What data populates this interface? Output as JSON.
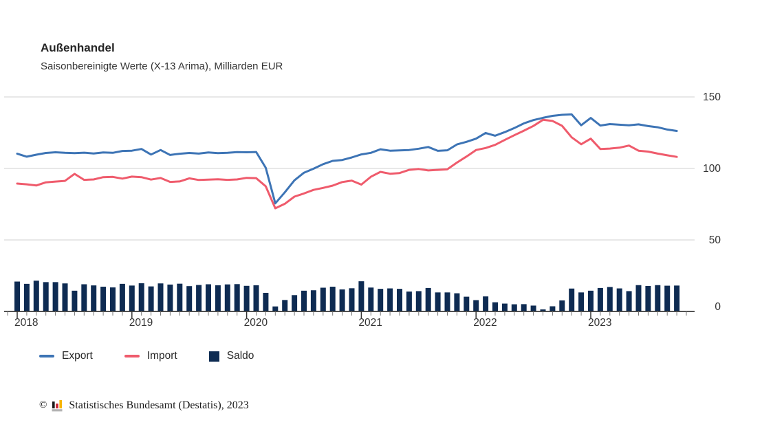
{
  "title": "Außenhandel",
  "subtitle": "Saisonbereinigte Werte (X-13 Arima), Milliarden EUR",
  "legend": [
    {
      "label": "Export",
      "swatch": "line",
      "color": "#3d74b5"
    },
    {
      "label": "Import",
      "swatch": "line",
      "color": "#ef5b6c"
    },
    {
      "label": "Saldo",
      "swatch": "square",
      "color": "#0e2b52"
    }
  ],
  "footer": {
    "copyright": "©",
    "source": "Statistisches Bundesamt (Destatis), 2023",
    "logo_colors": {
      "bar1": "#1a1a1a",
      "bar2": "#cc2330",
      "bar3": "#f7b500",
      "base": "#b3b3b3"
    }
  },
  "colors": {
    "export_line": "#3d74b5",
    "import_line": "#ef5b6c",
    "saldo_bar": "#0e2b52",
    "gridline": "#d2d2d2",
    "axis": "#3a3a3a",
    "tick_minor": "#777777",
    "tick_major": "#333333",
    "label_text": "#333333"
  },
  "chart_data": {
    "type": "line+bar",
    "title": "Außenhandel",
    "subtitle": "Saisonbereinigte Werte (X-13 Arima), Milliarden EUR",
    "unit": "Milliarden EUR",
    "x_unit": "month",
    "x_start": "2018-01",
    "x_end": "2023-10",
    "year_labels": [
      "2018",
      "2019",
      "2020",
      "2021",
      "2022",
      "2023"
    ],
    "year_start_indices": [
      0,
      12,
      24,
      36,
      48,
      60
    ],
    "y_ticks": [
      0,
      50,
      100,
      150
    ],
    "ylim": [
      0,
      150
    ],
    "yaxis_side": "right",
    "grid": "horizontal",
    "legend_position": "bottom-left",
    "series": [
      {
        "name": "Export",
        "type": "line",
        "color": "#3d74b5",
        "values": [
          110.3,
          108.2,
          109.6,
          110.8,
          111.3,
          110.9,
          110.7,
          111.0,
          110.5,
          111.2,
          110.9,
          112.2,
          112.4,
          113.6,
          109.7,
          112.9,
          109.4,
          110.3,
          110.8,
          110.4,
          111.2,
          110.7,
          110.9,
          111.4,
          111.3,
          111.5,
          100.5,
          75.6,
          83.3,
          91.7,
          97.0,
          99.8,
          103.0,
          105.3,
          105.9,
          107.7,
          109.8,
          110.9,
          113.4,
          112.4,
          112.6,
          112.9,
          113.8,
          115.0,
          112.3,
          112.7,
          116.8,
          118.6,
          120.8,
          124.8,
          122.9,
          125.4,
          128.2,
          131.5,
          133.8,
          135.4,
          136.8,
          137.5,
          137.8,
          130.2,
          135.3,
          130.0,
          131.0,
          130.6,
          130.2,
          130.8,
          129.6,
          128.8,
          127.2,
          126.2
        ]
      },
      {
        "name": "Import",
        "type": "line",
        "color": "#ef5b6c",
        "values": [
          89.4,
          88.9,
          88.1,
          90.3,
          90.8,
          91.3,
          96.2,
          92.0,
          92.3,
          93.9,
          94.1,
          92.9,
          94.3,
          93.9,
          92.2,
          93.3,
          90.6,
          90.9,
          93.1,
          91.9,
          92.2,
          92.4,
          92.0,
          92.3,
          93.4,
          93.2,
          87.5,
          72.1,
          75.3,
          80.3,
          82.5,
          85.0,
          86.4,
          88.0,
          90.5,
          91.5,
          88.7,
          94.2,
          97.6,
          96.3,
          96.8,
          99.0,
          99.6,
          98.6,
          99.0,
          99.4,
          104.1,
          108.3,
          112.9,
          114.3,
          116.5,
          119.9,
          123.2,
          126.4,
          129.7,
          134.0,
          133.2,
          129.8,
          121.8,
          116.9,
          120.8,
          113.6,
          113.9,
          114.5,
          116.0,
          112.4,
          111.8,
          110.4,
          109.2,
          108.1
        ]
      },
      {
        "name": "Saldo",
        "type": "bar",
        "color": "#0e2b52",
        "values": [
          20.9,
          19.3,
          21.5,
          20.5,
          20.5,
          19.6,
          14.5,
          19.0,
          18.2,
          17.3,
          16.8,
          19.3,
          18.1,
          19.7,
          17.5,
          19.6,
          18.8,
          19.4,
          17.7,
          18.5,
          19.0,
          18.3,
          18.9,
          19.1,
          17.9,
          18.3,
          13.0,
          3.5,
          8.0,
          11.4,
          14.5,
          14.8,
          16.6,
          17.3,
          15.4,
          16.2,
          21.1,
          16.7,
          15.8,
          16.1,
          15.8,
          13.9,
          14.2,
          16.4,
          13.3,
          13.3,
          12.7,
          10.3,
          7.9,
          10.5,
          6.4,
          5.5,
          5.0,
          5.1,
          4.1,
          1.4,
          3.6,
          7.7,
          16.0,
          13.3,
          14.5,
          16.4,
          17.1,
          16.1,
          14.2,
          18.4,
          17.8,
          18.4,
          18.0,
          18.1
        ]
      }
    ]
  }
}
